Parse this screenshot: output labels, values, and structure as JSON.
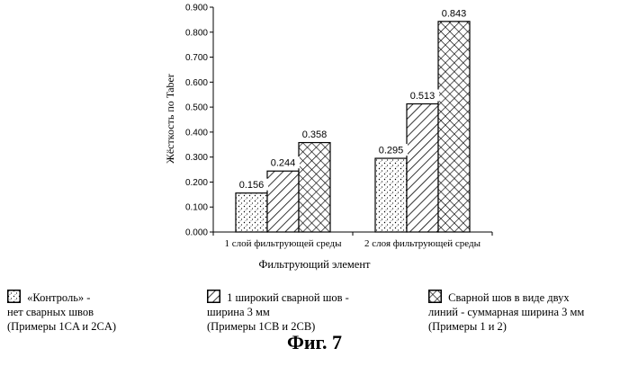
{
  "chart_data": {
    "type": "bar",
    "categories": [
      "1 слой фильтрующей среды",
      "2 слоя фильтрующей среды"
    ],
    "series": [
      {
        "name": "«Контроль» - нет сварных швов (Примеры 1CA и 2CA)",
        "pattern": "dots",
        "values": [
          0.156,
          0.295
        ]
      },
      {
        "name": "1 широкий сварной шов - ширина 3 мм (Примеры 1CB и 2CB)",
        "pattern": "hatch",
        "values": [
          0.244,
          0.513
        ]
      },
      {
        "name": "Сварной шов в виде двух линий - суммарная ширина 3 мм (Примеры 1 и 2)",
        "pattern": "crosshatch",
        "values": [
          0.358,
          0.843
        ]
      }
    ],
    "data_labels": [
      [
        "0.156",
        "0.295"
      ],
      [
        "0.244",
        "0.513"
      ],
      [
        "0.358",
        "0.843"
      ]
    ],
    "yticks": [
      "0.000",
      "0.100",
      "0.200",
      "0.300",
      "0.400",
      "0.500",
      "0.600",
      "0.700",
      "0.800",
      "0.900"
    ],
    "ylim": [
      0,
      0.9
    ],
    "ylabel": "Жёсткость по Taber",
    "xlabel": "Фильтрующий элемент",
    "grid": false
  },
  "legend": [
    {
      "lines": [
        "«Контроль» -",
        "нет сварных швов",
        "(Примеры 1CA и 2CA)"
      ]
    },
    {
      "lines": [
        "1 широкий сварной шов  -",
        "ширина 3 мм",
        "(Примеры 1CB и 2CB)"
      ]
    },
    {
      "lines": [
        "Сварной шов в виде двух",
        "линий - суммарная ширина 3 мм",
        "(Примеры 1 и 2)"
      ]
    }
  ],
  "caption": "Фиг. 7"
}
